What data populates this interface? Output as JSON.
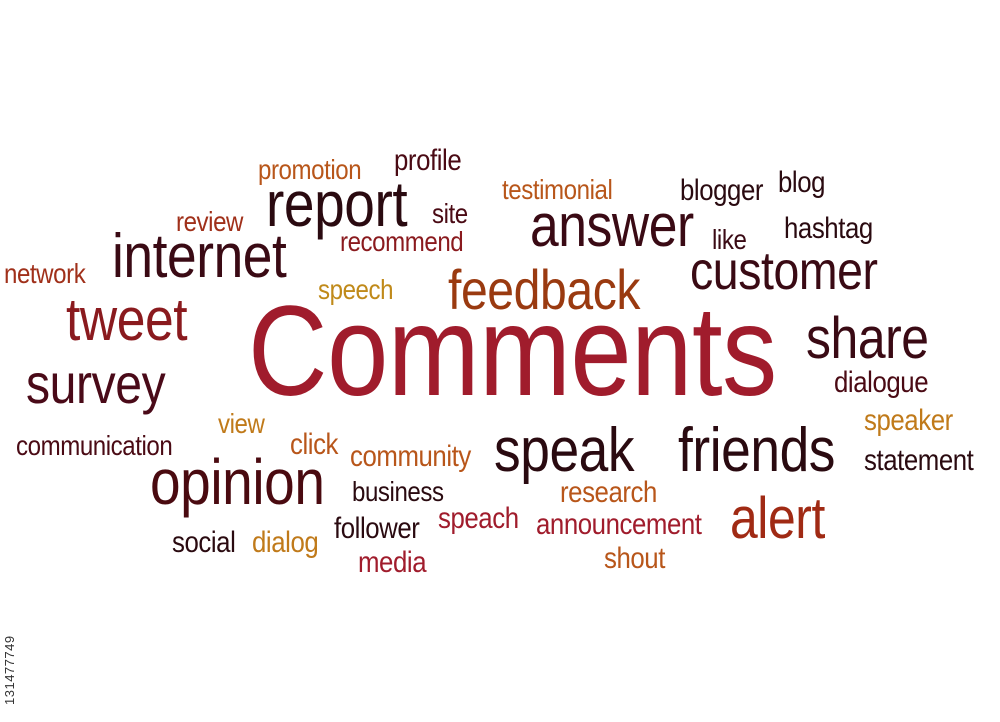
{
  "words": [
    {
      "text": "Comments",
      "color": "#a01c2c"
    },
    {
      "text": "feedback",
      "color": "#9a3a10"
    },
    {
      "text": "customer",
      "color": "#3a0a14"
    },
    {
      "text": "answer",
      "color": "#3a0a14"
    },
    {
      "text": "report",
      "color": "#2a0a10"
    },
    {
      "text": "internet",
      "color": "#3a0a14"
    },
    {
      "text": "tweet",
      "color": "#8a1a1e"
    },
    {
      "text": "survey",
      "color": "#4a0a18"
    },
    {
      "text": "share",
      "color": "#3a0a14"
    },
    {
      "text": "speak",
      "color": "#2a0a10"
    },
    {
      "text": "friends",
      "color": "#2a0a10"
    },
    {
      "text": "opinion",
      "color": "#4a0a10"
    },
    {
      "text": "alert",
      "color": "#a02a14"
    },
    {
      "text": "promotion",
      "color": "#b8561a"
    },
    {
      "text": "profile",
      "color": "#4a0a14"
    },
    {
      "text": "testimonial",
      "color": "#b8561a"
    },
    {
      "text": "blogger",
      "color": "#2a0a10"
    },
    {
      "text": "blog",
      "color": "#2a0a10"
    },
    {
      "text": "review",
      "color": "#a0301a"
    },
    {
      "text": "site",
      "color": "#4a0a14"
    },
    {
      "text": "recommend",
      "color": "#8a1a1e"
    },
    {
      "text": "like",
      "color": "#3a0a14"
    },
    {
      "text": "hashtag",
      "color": "#2a0a10"
    },
    {
      "text": "network",
      "color": "#a0301a"
    },
    {
      "text": "speech",
      "color": "#c08a1a"
    },
    {
      "text": "dialogue",
      "color": "#4a0a14"
    },
    {
      "text": "speaker",
      "color": "#c07a1a"
    },
    {
      "text": "view",
      "color": "#c07a1a"
    },
    {
      "text": "communication",
      "color": "#4a0a14"
    },
    {
      "text": "click",
      "color": "#b8561a"
    },
    {
      "text": "community",
      "color": "#b8561a"
    },
    {
      "text": "statement",
      "color": "#2a0a10"
    },
    {
      "text": "business",
      "color": "#2a0a10"
    },
    {
      "text": "research",
      "color": "#b8561a"
    },
    {
      "text": "speach",
      "color": "#a01c2c"
    },
    {
      "text": "announcement",
      "color": "#a01c2c"
    },
    {
      "text": "follower",
      "color": "#2a0a10"
    },
    {
      "text": "social",
      "color": "#2a0a10"
    },
    {
      "text": "dialog",
      "color": "#c07a1a"
    },
    {
      "text": "media",
      "color": "#a01c2c"
    },
    {
      "text": "shout",
      "color": "#b8561a"
    }
  ],
  "stock_id": "131477749"
}
